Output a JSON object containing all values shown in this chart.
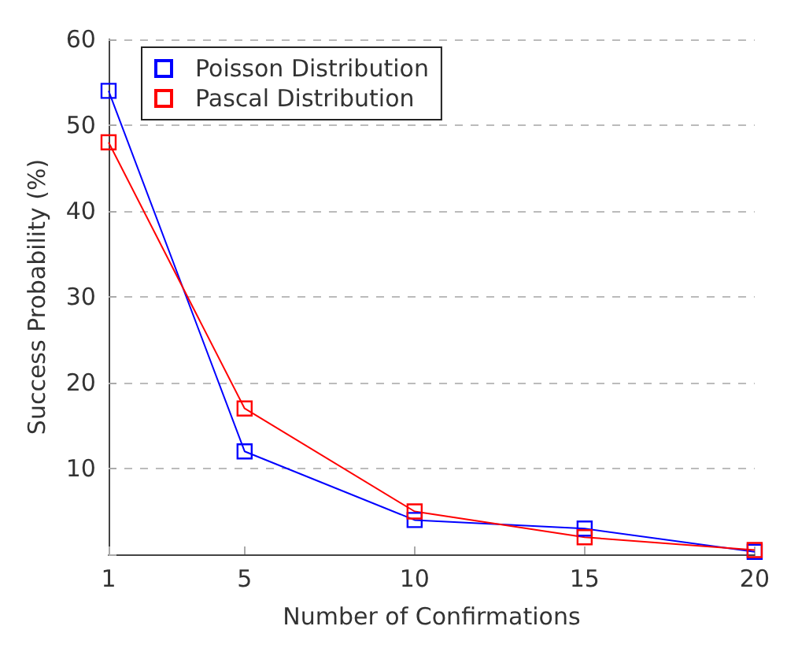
{
  "chart_data": {
    "type": "line",
    "xlabel": "Number of Confirmations",
    "ylabel": "Success Probability (%)",
    "x": [
      1,
      5,
      10,
      15,
      20
    ],
    "series": [
      {
        "name": "Poisson Distribution",
        "color": "#0000ff",
        "values": [
          54,
          12,
          4,
          3,
          0.3
        ]
      },
      {
        "name": "Pascal Distribution",
        "color": "#ff0000",
        "values": [
          48,
          17,
          5,
          2,
          0.5
        ]
      }
    ],
    "xlim": [
      1,
      20
    ],
    "xticks": [
      1,
      5,
      10,
      15,
      20
    ],
    "ylim": [
      0,
      60
    ],
    "yticks": [
      {
        "value": 0,
        "label": null
      },
      10,
      20,
      30,
      40,
      50,
      60
    ],
    "grid": "y",
    "legend": "top left",
    "marker": "square",
    "line_style": "solid"
  }
}
